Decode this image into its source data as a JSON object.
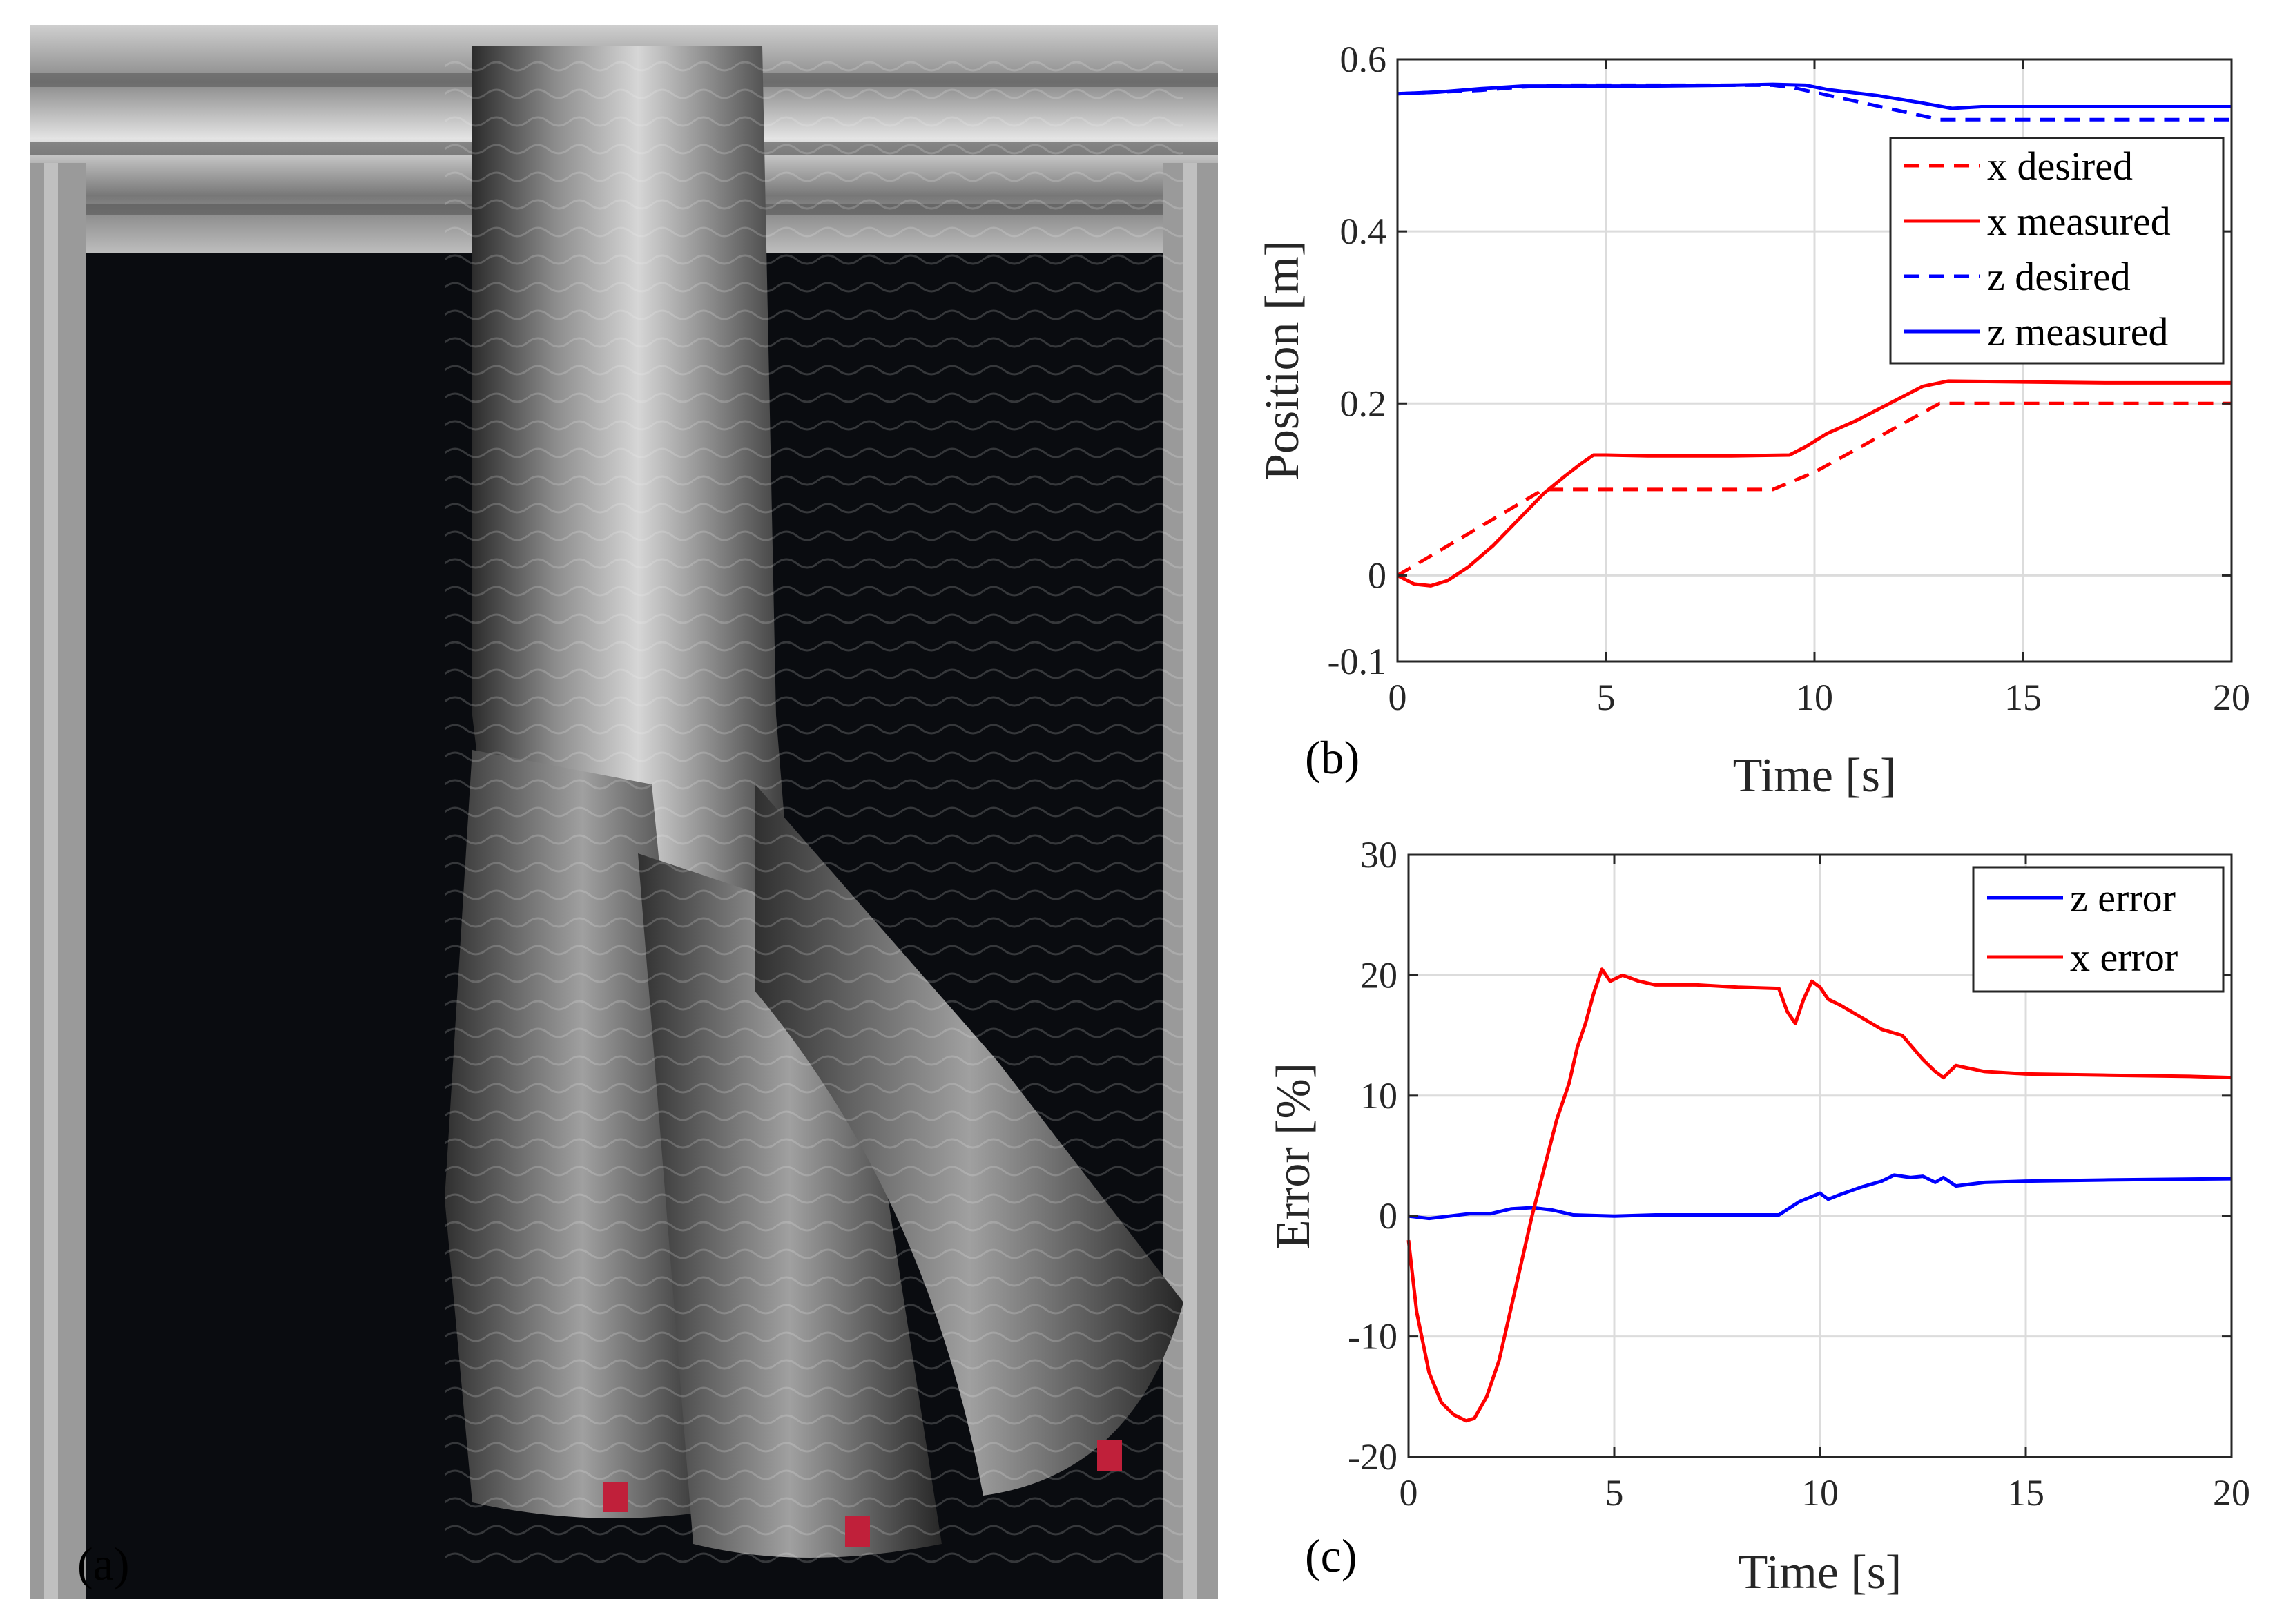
{
  "panels": {
    "a_label": "(a)",
    "b_label": "(b)",
    "c_label": "(c)"
  },
  "photo": {
    "subject": "inflatable-tube-robot-photo"
  },
  "chart_data": [
    {
      "id": "b",
      "type": "line",
      "xlabel": "Time [s]",
      "ylabel": "Position [m]",
      "xlim": [
        0,
        20
      ],
      "ylim": [
        -0.1,
        0.6
      ],
      "xticks": [
        0,
        5,
        10,
        15,
        20
      ],
      "yticks": [
        0.6,
        0.4,
        0.2,
        0,
        -0.1
      ],
      "ytick_labels": [
        "0.6",
        "0.4",
        "0.2",
        "0",
        "-0.1"
      ],
      "grid": true,
      "legend_position": "top-right",
      "series": [
        {
          "name": "x desired",
          "color": "#ff0000",
          "dash": true,
          "x": [
            0,
            3.5,
            4,
            9,
            10,
            13,
            20
          ],
          "y": [
            0,
            0.1,
            0.1,
            0.1,
            0.12,
            0.2,
            0.2
          ]
        },
        {
          "name": "x measured",
          "color": "#ff0000",
          "dash": false,
          "x": [
            0,
            0.4,
            0.8,
            1.2,
            1.7,
            2.3,
            3,
            3.5,
            4,
            4.4,
            4.7,
            5,
            6,
            7,
            8,
            9.4,
            9.8,
            10.3,
            11,
            11.8,
            12.6,
            13.2,
            15,
            17,
            20
          ],
          "y": [
            0,
            -0.01,
            -0.012,
            -0.006,
            0.01,
            0.035,
            0.07,
            0.095,
            0.115,
            0.13,
            0.14,
            0.14,
            0.139,
            0.139,
            0.139,
            0.14,
            0.15,
            0.165,
            0.18,
            0.2,
            0.22,
            0.226,
            0.225,
            0.224,
            0.224
          ]
        },
        {
          "name": "z desired",
          "color": "#0000ff",
          "dash": true,
          "x": [
            0,
            2,
            3,
            4,
            9,
            9.5,
            13,
            20
          ],
          "y": [
            0.56,
            0.564,
            0.568,
            0.57,
            0.57,
            0.567,
            0.53,
            0.53
          ]
        },
        {
          "name": "z measured",
          "color": "#0000ff",
          "dash": false,
          "x": [
            0,
            1,
            2,
            3,
            4,
            6,
            8,
            9,
            9.8,
            10.3,
            11.5,
            12.5,
            13.3,
            14,
            16,
            20
          ],
          "y": [
            0.56,
            0.562,
            0.566,
            0.569,
            0.569,
            0.569,
            0.57,
            0.571,
            0.57,
            0.565,
            0.558,
            0.55,
            0.543,
            0.545,
            0.545,
            0.545
          ]
        }
      ]
    },
    {
      "id": "c",
      "type": "line",
      "xlabel": "Time [s]",
      "ylabel": "Error [%]",
      "xlim": [
        0,
        20
      ],
      "ylim": [
        -20,
        30
      ],
      "xticks": [
        0,
        5,
        10,
        15,
        20
      ],
      "yticks": [
        30,
        20,
        10,
        0,
        -10,
        -20
      ],
      "ytick_labels": [
        "30",
        "20",
        "10",
        "0",
        "-10",
        "-20"
      ],
      "grid": true,
      "legend_position": "top-right",
      "series": [
        {
          "name": "z error",
          "color": "#0000ff",
          "dash": false,
          "x": [
            0,
            0.5,
            1,
            1.5,
            2,
            2.5,
            3,
            3.5,
            4,
            5,
            6,
            7,
            8,
            9,
            9.5,
            10,
            10.2,
            10.5,
            11,
            11.5,
            11.8,
            12.2,
            12.5,
            12.8,
            13,
            13.3,
            14,
            15,
            17,
            20
          ],
          "y": [
            0,
            -0.2,
            0,
            0.2,
            0.2,
            0.6,
            0.7,
            0.5,
            0.1,
            0,
            0.1,
            0.1,
            0.1,
            0.1,
            1.2,
            1.9,
            1.4,
            1.8,
            2.4,
            2.9,
            3.4,
            3.2,
            3.3,
            2.8,
            3.2,
            2.5,
            2.8,
            2.9,
            3.0,
            3.1
          ]
        },
        {
          "name": "x error",
          "color": "#ff0000",
          "dash": false,
          "x": [
            0,
            0.2,
            0.5,
            0.8,
            1.1,
            1.4,
            1.6,
            1.9,
            2.2,
            2.6,
            3,
            3.3,
            3.6,
            3.9,
            4.1,
            4.3,
            4.5,
            4.7,
            4.9,
            5.2,
            5.6,
            6,
            7,
            8,
            9,
            9.2,
            9.4,
            9.6,
            9.8,
            10.0,
            10.2,
            10.5,
            11,
            11.5,
            12,
            12.5,
            12.8,
            13,
            13.3,
            14,
            15,
            17,
            19,
            20
          ],
          "y": [
            -2,
            -8,
            -13,
            -15.5,
            -16.5,
            -17,
            -16.8,
            -15,
            -12,
            -6,
            0,
            4,
            8,
            11,
            14,
            16,
            18.5,
            20.5,
            19.5,
            20,
            19.5,
            19.2,
            19.2,
            19,
            18.9,
            17,
            16,
            18,
            19.5,
            19,
            18,
            17.5,
            16.5,
            15.5,
            15,
            13,
            12,
            11.5,
            12.5,
            12,
            11.8,
            11.7,
            11.6,
            11.5
          ]
        }
      ]
    }
  ]
}
